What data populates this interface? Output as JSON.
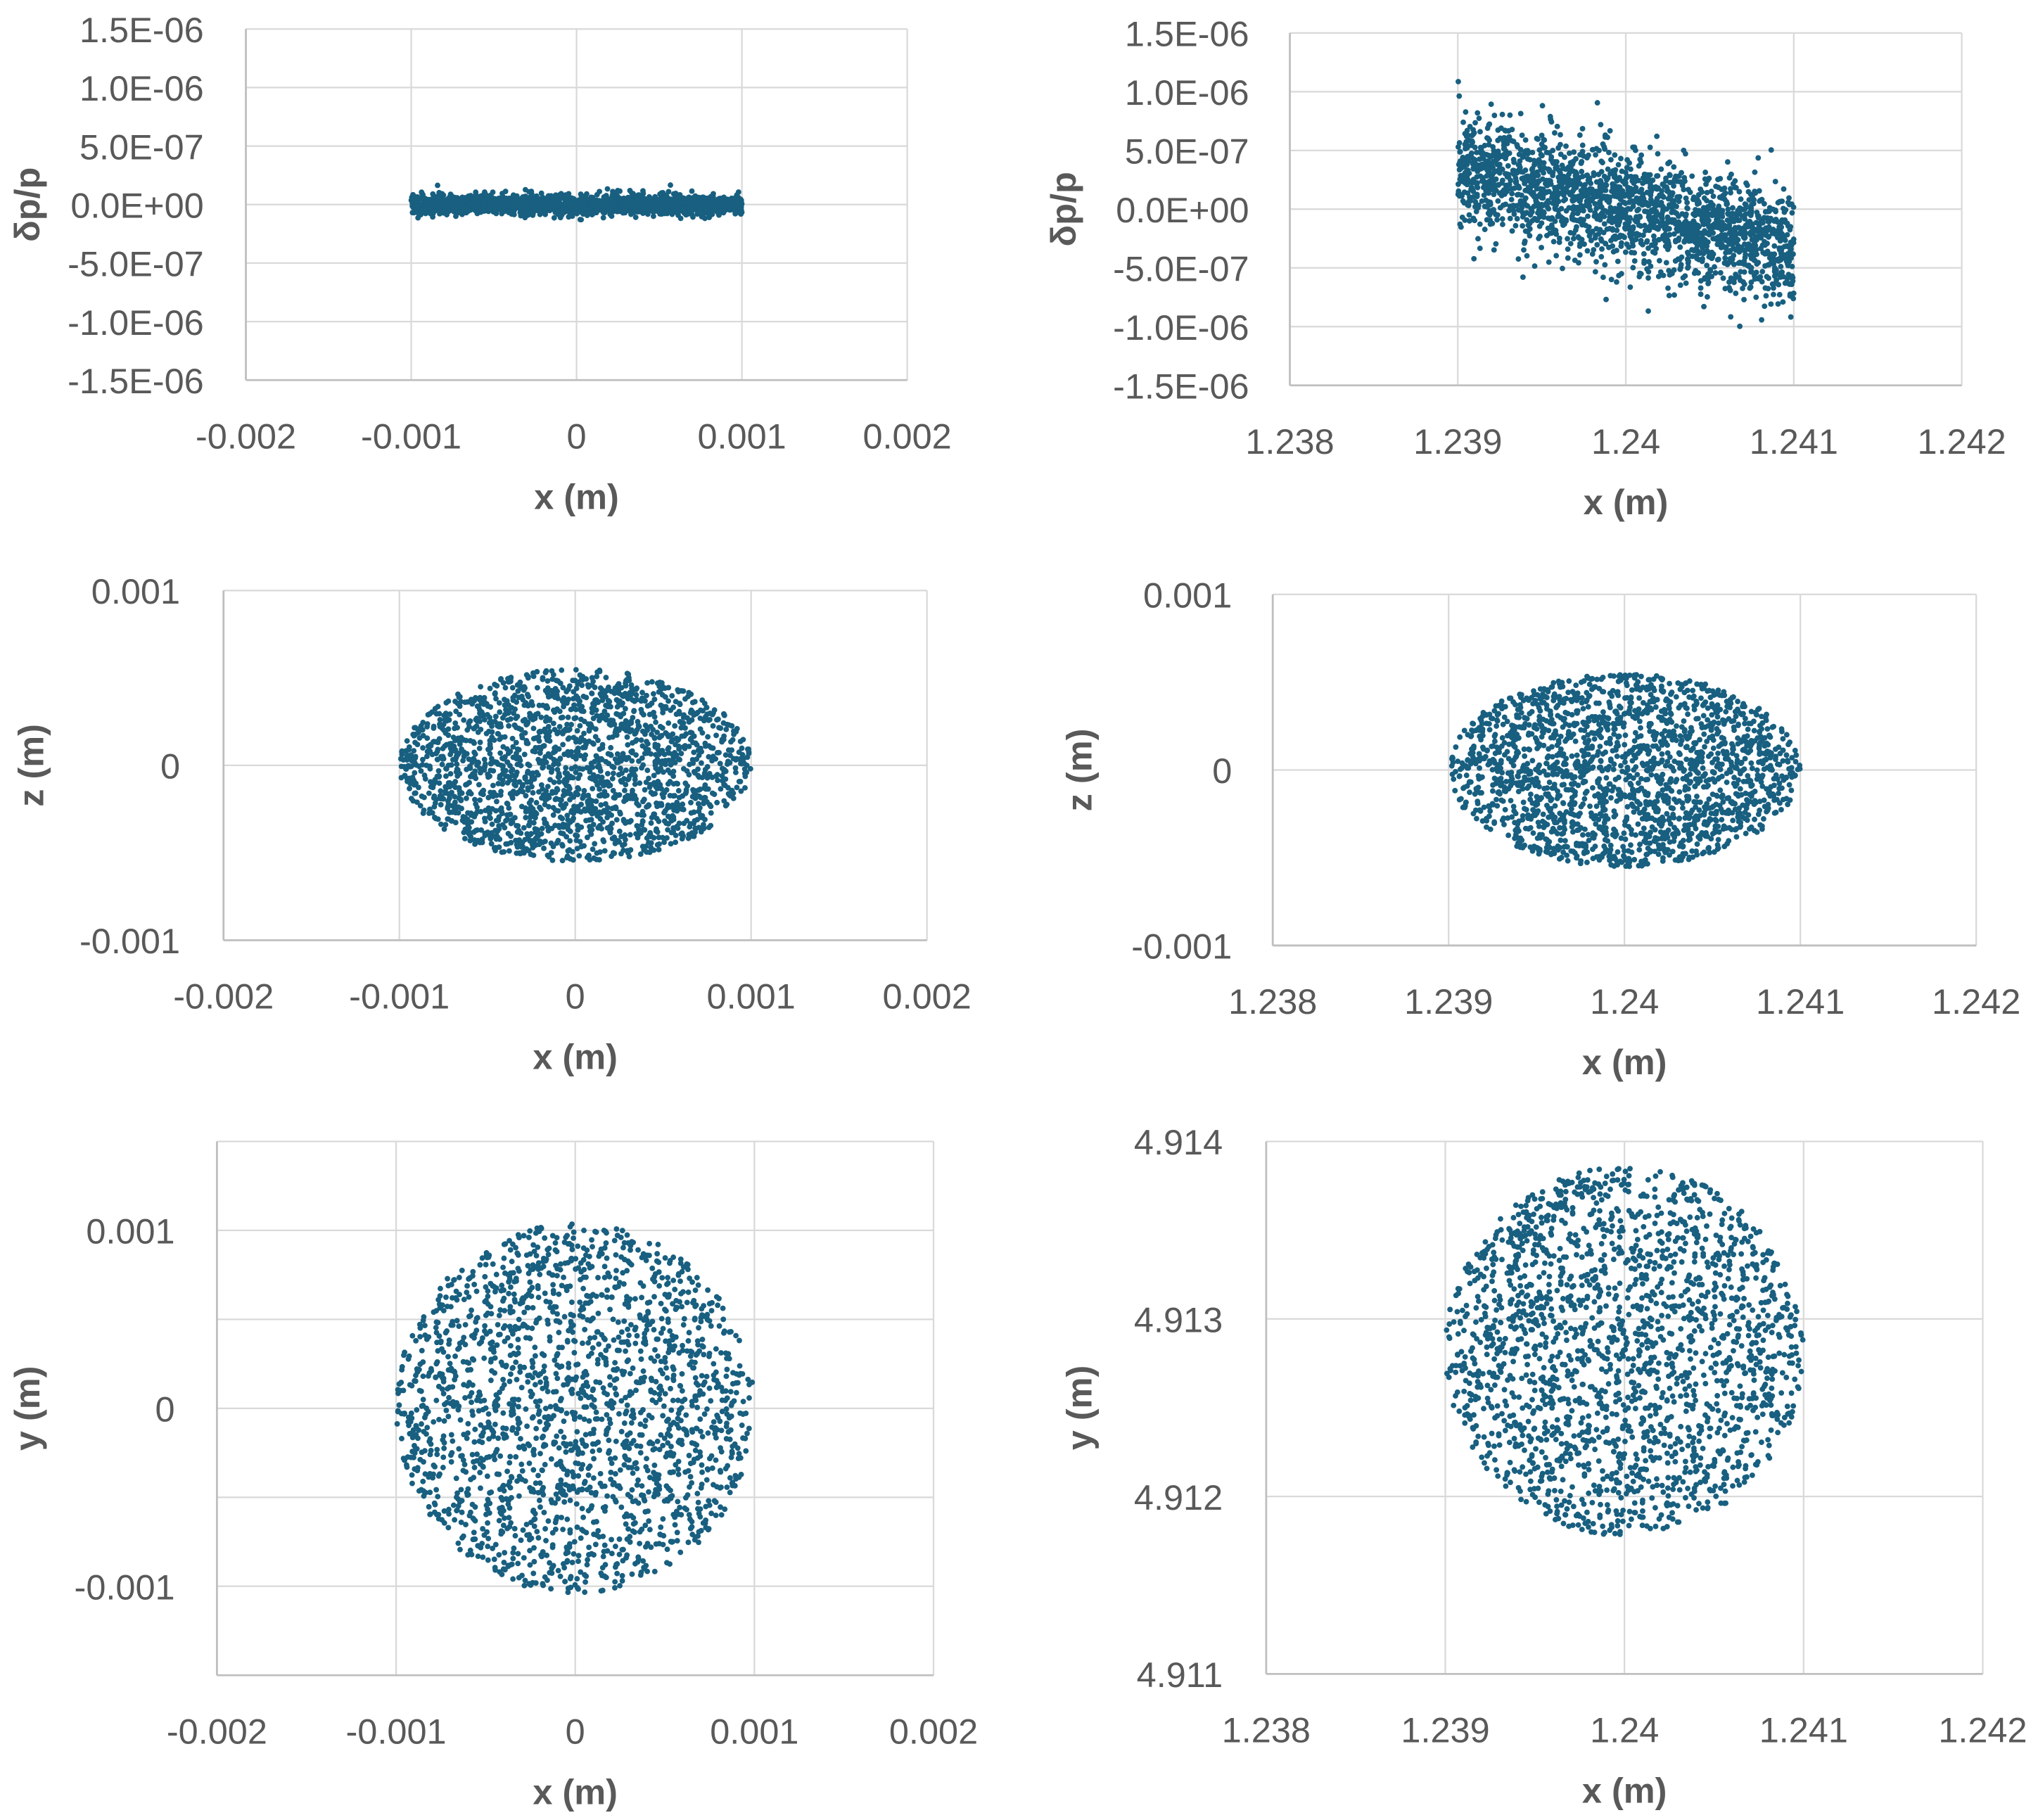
{
  "colors": {
    "marker": "#185f80",
    "grid": "#d9d9d9",
    "text": "#595959"
  },
  "chart_data": [
    {
      "type": "scatter",
      "name": "dp-vs-x-initial",
      "xlabel": "x (m)",
      "ylabel": "δp/p",
      "xlim": [
        -0.002,
        0.002
      ],
      "ylim": [
        -1.5e-06,
        1.5e-06
      ],
      "xticks": [
        -0.002,
        -0.001,
        0,
        0.001,
        0.002
      ],
      "xtick_labels": [
        "-0.002",
        "-0.001",
        "0",
        "0.001",
        "0.002"
      ],
      "yticks": [
        -1.5e-06,
        -1e-06,
        -5e-07,
        0,
        5e-07,
        1e-06,
        1.5e-06
      ],
      "ytick_labels": [
        "-1.5E-06",
        "-1.0E-06",
        "-5.0E-07",
        "0.0E+00",
        "5.0E-07",
        "1.0E-06",
        "1.5E-06"
      ],
      "grid": true,
      "distribution": {
        "shape": "band",
        "x_center": 0,
        "x_halfwidth": 0.001,
        "y_center": 0,
        "y_sigma": 4e-08,
        "y_slope": 0,
        "n": 2000
      }
    },
    {
      "type": "scatter",
      "name": "dp-vs-x-final",
      "xlabel": "x (m)",
      "ylabel": "δp/p",
      "xlim": [
        1.238,
        1.242
      ],
      "ylim": [
        -1.5e-06,
        1.5e-06
      ],
      "xticks": [
        1.238,
        1.239,
        1.24,
        1.241,
        1.242
      ],
      "xtick_labels": [
        "1.238",
        "1.239",
        "1.24",
        "1.241",
        "1.242"
      ],
      "yticks": [
        -1.5e-06,
        -1e-06,
        -5e-07,
        0,
        5e-07,
        1e-06,
        1.5e-06
      ],
      "ytick_labels": [
        "-1.5E-06",
        "-1.0E-06",
        "-5.0E-07",
        "0.0E+00",
        "5.0E-07",
        "1.0E-06",
        "1.5E-06"
      ],
      "grid": true,
      "distribution": {
        "shape": "band",
        "x_center": 1.24,
        "x_halfwidth": 0.001,
        "y_center": 0,
        "y_sigma": 2.5e-07,
        "y_slope": -0.00035,
        "n": 2000
      }
    },
    {
      "type": "scatter",
      "name": "z-vs-x-initial",
      "xlabel": "x (m)",
      "ylabel": "z (m)",
      "xlim": [
        -0.002,
        0.002
      ],
      "ylim": [
        -0.001,
        0.001
      ],
      "xticks": [
        -0.002,
        -0.001,
        0,
        0.001,
        0.002
      ],
      "xtick_labels": [
        "-0.002",
        "-0.001",
        "0",
        "0.001",
        "0.002"
      ],
      "yticks": [
        -0.001,
        0,
        0.001
      ],
      "ytick_labels": [
        "-0.001",
        "0",
        "0.001"
      ],
      "grid": true,
      "distribution": {
        "shape": "ellipse",
        "x_center": 0,
        "x_radius": 0.001,
        "y_center": 0,
        "y_radius": 0.00055,
        "n": 2000
      }
    },
    {
      "type": "scatter",
      "name": "z-vs-x-final",
      "xlabel": "x (m)",
      "ylabel": "z (m)",
      "xlim": [
        1.238,
        1.242
      ],
      "ylim": [
        -0.001,
        0.001
      ],
      "xticks": [
        1.238,
        1.239,
        1.24,
        1.241,
        1.242
      ],
      "xtick_labels": [
        "1.238",
        "1.239",
        "1.24",
        "1.241",
        "1.242"
      ],
      "yticks": [
        -0.001,
        0,
        0.001
      ],
      "ytick_labels": [
        "-0.001",
        "0",
        "0.001"
      ],
      "grid": true,
      "distribution": {
        "shape": "ellipse",
        "x_center": 1.24,
        "x_radius": 0.001,
        "y_center": 0,
        "y_radius": 0.00055,
        "n": 2000
      }
    },
    {
      "type": "scatter",
      "name": "y-vs-x-initial",
      "xlabel": "x (m)",
      "ylabel": "y (m)",
      "xlim": [
        -0.002,
        0.002
      ],
      "ylim": [
        -0.0015,
        0.0015
      ],
      "xticks": [
        -0.002,
        -0.001,
        0,
        0.001,
        0.002
      ],
      "xtick_labels": [
        "-0.002",
        "-0.001",
        "0",
        "0.001",
        "0.002"
      ],
      "yticks": [
        -0.001,
        0,
        0.001
      ],
      "ytick_labels": [
        "-0.001",
        "0",
        "0.001"
      ],
      "grid": true,
      "distribution": {
        "shape": "ellipse",
        "x_center": 0,
        "x_radius": 0.001,
        "y_center": 0,
        "y_radius": 0.00104,
        "n": 2000
      }
    },
    {
      "type": "scatter",
      "name": "y-vs-x-final",
      "xlabel": "x (m)",
      "ylabel": "y (m)",
      "xlim": [
        1.238,
        1.242
      ],
      "ylim": [
        4.911,
        4.914
      ],
      "xticks": [
        1.238,
        1.239,
        1.24,
        1.241,
        1.242
      ],
      "xtick_labels": [
        "1.238",
        "1.239",
        "1.24",
        "1.241",
        "1.242"
      ],
      "yticks": [
        4.911,
        4.912,
        4.913,
        4.914
      ],
      "ytick_labels": [
        "4.911",
        "4.912",
        "4.913",
        "4.914"
      ],
      "grid": true,
      "distribution": {
        "shape": "ellipse",
        "x_center": 1.24,
        "x_radius": 0.001,
        "y_center": 4.91282,
        "y_radius": 0.00104,
        "n": 2000
      }
    }
  ]
}
